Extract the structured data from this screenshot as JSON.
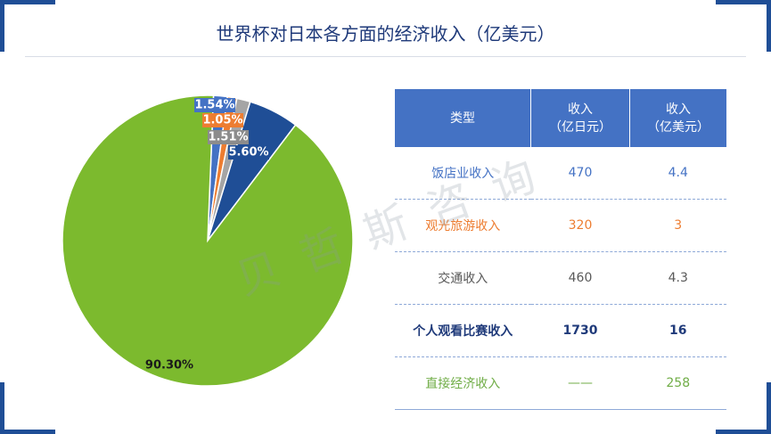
{
  "title": "世界杯对日本各方面的经济收入（亿美元）",
  "watermark": "贝哲斯咨询",
  "colors": {
    "frame": "#1f4e96",
    "title": "#1f3a7a",
    "header_bg": "#4472c4",
    "row_colors": [
      "#4472c4",
      "#ed7d31",
      "#595959",
      "#1f3a7a",
      "#70ad47"
    ]
  },
  "chart_data": {
    "type": "pie",
    "title": "",
    "slices": [
      {
        "label": "1.54%",
        "value": 1.54,
        "color": "#4472c4"
      },
      {
        "label": "1.05%",
        "value": 1.05,
        "color": "#ed7d31"
      },
      {
        "label": "1.51%",
        "value": 1.51,
        "color": "#a5a5a5"
      },
      {
        "label": "5.60%",
        "value": 5.6,
        "color": "#1f4e96"
      },
      {
        "label": "90.30%",
        "value": 90.3,
        "color": "#7cba2e"
      }
    ]
  },
  "table": {
    "headers": [
      "类型",
      "收入\n（亿日元）",
      "收入\n（亿美元）"
    ],
    "rows": [
      {
        "type": "饭店业收入",
        "jpy": "470",
        "usd": "4.4"
      },
      {
        "type": "观光旅游收入",
        "jpy": "320",
        "usd": "3"
      },
      {
        "type": "交通收入",
        "jpy": "460",
        "usd": "4.3"
      },
      {
        "type": "个人观看比赛收入",
        "jpy": "1730",
        "usd": "16"
      },
      {
        "type": "直接经济收入",
        "jpy": "——",
        "usd": "258"
      }
    ]
  }
}
